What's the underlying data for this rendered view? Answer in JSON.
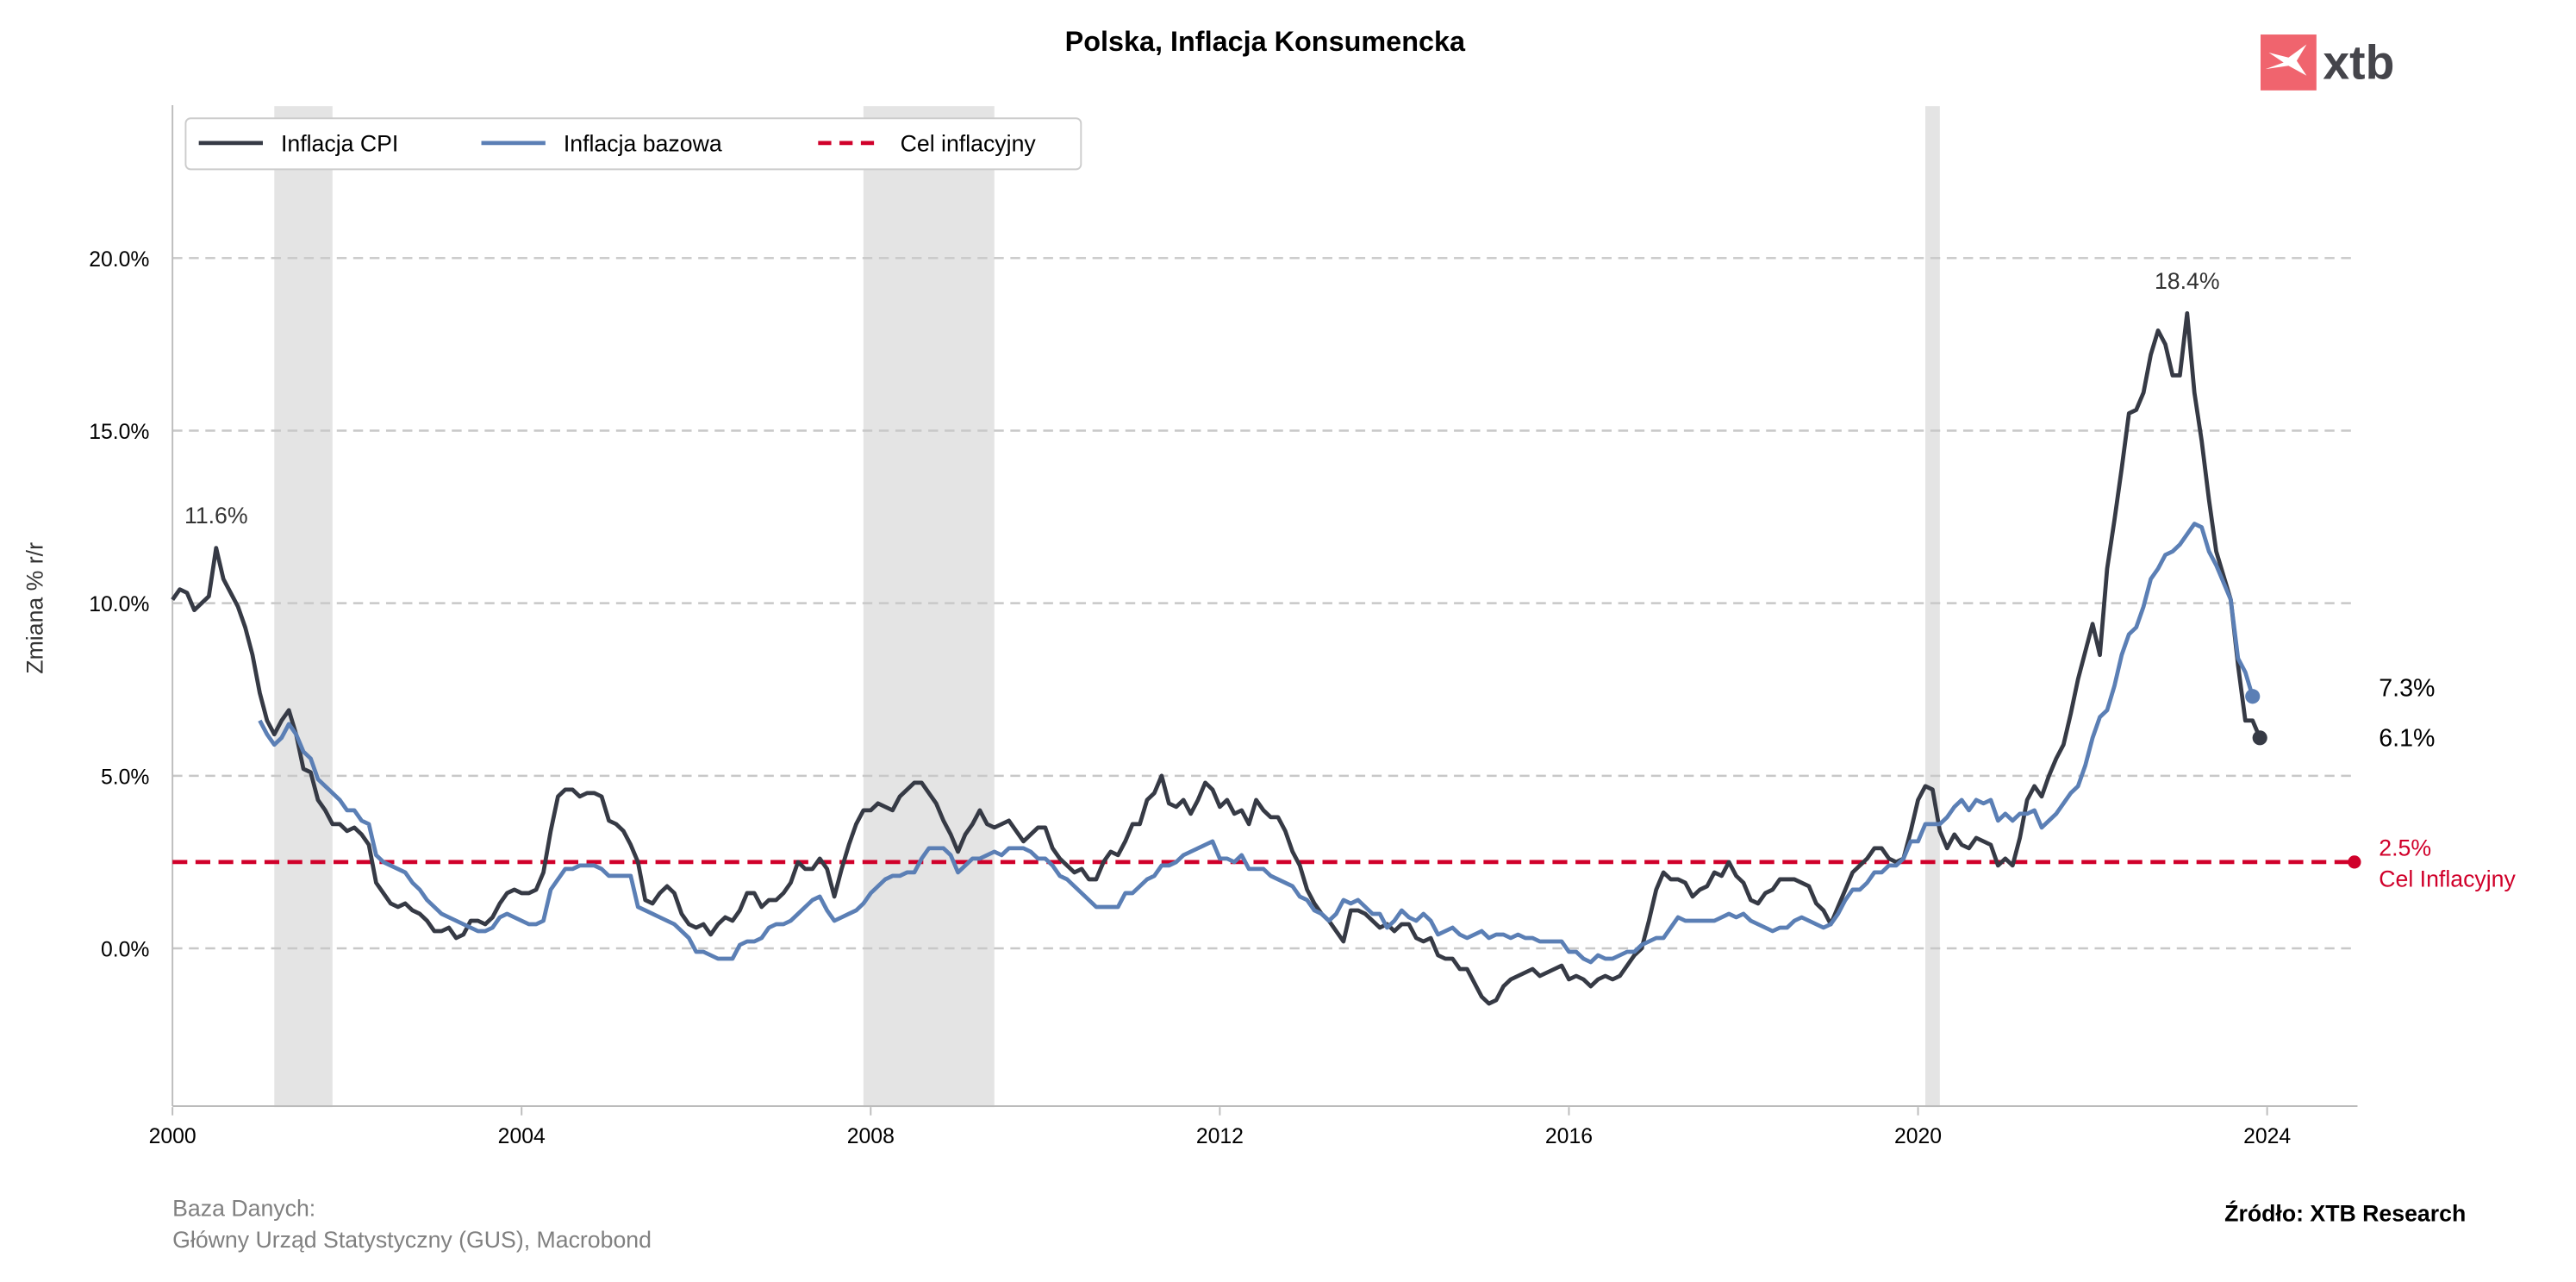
{
  "logo": {
    "text": "xtb",
    "icon": "xtb-x-logo-icon",
    "color": "#f0646e"
  },
  "footer": {
    "db_label": "Baza Danych:",
    "db_sources": "Główny Urząd Statystyczny (GUS), Macrobond",
    "source": "Źródło: XTB Research"
  },
  "chart_data": {
    "type": "line",
    "title": "Polska, Inflacja Konsumencka",
    "xlabel": "",
    "ylabel": "Zmiana % r/r",
    "xlim": [
      "2000-01",
      "2025-01"
    ],
    "ylim": [
      -4.6,
      24.4
    ],
    "x_ticks": [
      "2000",
      "2004",
      "2008",
      "2012",
      "2016",
      "2020",
      "2024"
    ],
    "y_ticks": [
      0,
      5,
      10,
      15,
      20
    ],
    "y_tick_labels": [
      "0.0%",
      "5.0%",
      "10.0%",
      "15.0%",
      "20.0%"
    ],
    "grid": "horizontal dashed",
    "legend_placement": "top-left",
    "shaded_periods": [
      [
        "2001-03",
        "2001-11"
      ],
      [
        "2007-12",
        "2009-06"
      ],
      [
        "2020-02",
        "2020-04"
      ]
    ],
    "target": {
      "name": "Cel inflacyjny",
      "value": 2.5,
      "label_value": "2.5%",
      "label_text": "Cel Inflacyjny",
      "color": "#d0002a"
    },
    "series": [
      {
        "name": "Inflacja CPI",
        "color": "#363a45",
        "start": "2000-01",
        "end_label": "6.1%",
        "values": [
          10.1,
          10.4,
          10.3,
          9.8,
          10.0,
          10.2,
          11.6,
          10.7,
          10.3,
          9.9,
          9.3,
          8.5,
          7.4,
          6.6,
          6.2,
          6.6,
          6.9,
          6.2,
          5.2,
          5.1,
          4.3,
          4.0,
          3.6,
          3.6,
          3.4,
          3.5,
          3.3,
          3.0,
          1.9,
          1.6,
          1.3,
          1.2,
          1.3,
          1.1,
          1.0,
          0.8,
          0.5,
          0.5,
          0.6,
          0.3,
          0.4,
          0.8,
          0.8,
          0.7,
          0.9,
          1.3,
          1.6,
          1.7,
          1.6,
          1.6,
          1.7,
          2.2,
          3.4,
          4.4,
          4.6,
          4.6,
          4.4,
          4.5,
          4.5,
          4.4,
          3.7,
          3.6,
          3.4,
          3.0,
          2.5,
          1.4,
          1.3,
          1.6,
          1.8,
          1.6,
          1.0,
          0.7,
          0.6,
          0.7,
          0.4,
          0.7,
          0.9,
          0.8,
          1.1,
          1.6,
          1.6,
          1.2,
          1.4,
          1.4,
          1.6,
          1.9,
          2.5,
          2.3,
          2.3,
          2.6,
          2.3,
          1.5,
          2.3,
          3.0,
          3.6,
          4.0,
          4.0,
          4.2,
          4.1,
          4.0,
          4.4,
          4.6,
          4.8,
          4.8,
          4.5,
          4.2,
          3.7,
          3.3,
          2.8,
          3.3,
          3.6,
          4.0,
          3.6,
          3.5,
          3.6,
          3.7,
          3.4,
          3.1,
          3.3,
          3.5,
          3.5,
          2.9,
          2.6,
          2.4,
          2.2,
          2.3,
          2.0,
          2.0,
          2.5,
          2.8,
          2.7,
          3.1,
          3.6,
          3.6,
          4.3,
          4.5,
          5.0,
          4.2,
          4.1,
          4.3,
          3.9,
          4.3,
          4.8,
          4.6,
          4.1,
          4.3,
          3.9,
          4.0,
          3.6,
          4.3,
          4.0,
          3.8,
          3.8,
          3.4,
          2.8,
          2.4,
          1.7,
          1.3,
          1.0,
          0.8,
          0.5,
          0.2,
          1.1,
          1.1,
          1.0,
          0.8,
          0.6,
          0.7,
          0.5,
          0.7,
          0.7,
          0.3,
          0.2,
          0.3,
          -0.2,
          -0.3,
          -0.3,
          -0.6,
          -0.6,
          -1.0,
          -1.4,
          -1.6,
          -1.5,
          -1.1,
          -0.9,
          -0.8,
          -0.7,
          -0.6,
          -0.8,
          -0.7,
          -0.6,
          -0.5,
          -0.9,
          -0.8,
          -0.9,
          -1.1,
          -0.9,
          -0.8,
          -0.9,
          -0.8,
          -0.5,
          -0.2,
          0.0,
          0.8,
          1.7,
          2.2,
          2.0,
          2.0,
          1.9,
          1.5,
          1.7,
          1.8,
          2.2,
          2.1,
          2.5,
          2.1,
          1.9,
          1.4,
          1.3,
          1.6,
          1.7,
          2.0,
          2.0,
          2.0,
          1.9,
          1.8,
          1.3,
          1.1,
          0.7,
          1.2,
          1.7,
          2.2,
          2.4,
          2.6,
          2.9,
          2.9,
          2.6,
          2.5,
          2.6,
          3.4,
          4.3,
          4.7,
          4.6,
          3.4,
          2.9,
          3.3,
          3.0,
          2.9,
          3.2,
          3.1,
          3.0,
          2.4,
          2.6,
          2.4,
          3.2,
          4.3,
          4.7,
          4.4,
          5.0,
          5.5,
          5.9,
          6.8,
          7.8,
          8.6,
          9.4,
          8.5,
          11.0,
          12.4,
          13.9,
          15.5,
          15.6,
          16.1,
          17.2,
          17.9,
          17.5,
          16.6,
          16.6,
          18.4,
          16.1,
          14.7,
          13.0,
          11.5,
          10.8,
          10.1,
          8.2,
          6.6,
          6.6,
          6.1
        ]
      },
      {
        "name": "Inflacja bazowa",
        "color": "#5b7fb5",
        "start": "2001-01",
        "end_label": "7.3%",
        "values": [
          6.6,
          6.2,
          5.9,
          6.1,
          6.5,
          6.2,
          5.7,
          5.5,
          4.9,
          4.7,
          4.5,
          4.3,
          4.0,
          4.0,
          3.7,
          3.6,
          2.7,
          2.5,
          2.4,
          2.3,
          2.2,
          1.9,
          1.7,
          1.4,
          1.2,
          1.0,
          0.9,
          0.8,
          0.7,
          0.6,
          0.5,
          0.5,
          0.6,
          0.9,
          1.0,
          0.9,
          0.8,
          0.7,
          0.7,
          0.8,
          1.7,
          2.0,
          2.3,
          2.3,
          2.4,
          2.4,
          2.4,
          2.3,
          2.1,
          2.1,
          2.1,
          2.1,
          1.2,
          1.1,
          1.0,
          0.9,
          0.8,
          0.7,
          0.5,
          0.3,
          -0.1,
          -0.1,
          -0.2,
          -0.3,
          -0.3,
          -0.3,
          0.1,
          0.2,
          0.2,
          0.3,
          0.6,
          0.7,
          0.7,
          0.8,
          1.0,
          1.2,
          1.4,
          1.5,
          1.1,
          0.8,
          0.9,
          1.0,
          1.1,
          1.3,
          1.6,
          1.8,
          2.0,
          2.1,
          2.1,
          2.2,
          2.2,
          2.6,
          2.9,
          2.9,
          2.9,
          2.7,
          2.2,
          2.4,
          2.6,
          2.6,
          2.7,
          2.8,
          2.7,
          2.9,
          2.9,
          2.9,
          2.8,
          2.6,
          2.6,
          2.4,
          2.1,
          2.0,
          1.8,
          1.6,
          1.4,
          1.2,
          1.2,
          1.2,
          1.2,
          1.6,
          1.6,
          1.8,
          2.0,
          2.1,
          2.4,
          2.4,
          2.5,
          2.7,
          2.8,
          2.9,
          3.0,
          3.1,
          2.6,
          2.6,
          2.5,
          2.7,
          2.3,
          2.3,
          2.3,
          2.1,
          2.0,
          1.9,
          1.8,
          1.5,
          1.4,
          1.1,
          1.0,
          0.8,
          1.0,
          1.4,
          1.3,
          1.4,
          1.2,
          1.0,
          1.0,
          0.6,
          0.8,
          1.1,
          0.9,
          0.8,
          1.0,
          0.8,
          0.4,
          0.5,
          0.6,
          0.4,
          0.3,
          0.4,
          0.5,
          0.3,
          0.4,
          0.4,
          0.3,
          0.4,
          0.3,
          0.3,
          0.2,
          0.2,
          0.2,
          0.2,
          -0.1,
          -0.1,
          -0.3,
          -0.4,
          -0.2,
          -0.3,
          -0.3,
          -0.2,
          -0.1,
          -0.1,
          0.1,
          0.2,
          0.3,
          0.3,
          0.6,
          0.9,
          0.8,
          0.8,
          0.8,
          0.8,
          0.8,
          0.9,
          1.0,
          0.9,
          1.0,
          0.8,
          0.7,
          0.6,
          0.5,
          0.6,
          0.6,
          0.8,
          0.9,
          0.8,
          0.7,
          0.6,
          0.7,
          1.0,
          1.4,
          1.7,
          1.7,
          1.9,
          2.2,
          2.2,
          2.4,
          2.4,
          2.6,
          3.1,
          3.1,
          3.6,
          3.6,
          3.6,
          3.8,
          4.1,
          4.3,
          4.0,
          4.3,
          4.2,
          4.3,
          3.7,
          3.9,
          3.7,
          3.9,
          3.9,
          4.0,
          3.5,
          3.7,
          3.9,
          4.2,
          4.5,
          4.7,
          5.3,
          6.1,
          6.7,
          6.9,
          7.6,
          8.5,
          9.1,
          9.3,
          9.9,
          10.7,
          11.0,
          11.4,
          11.5,
          11.7,
          12.0,
          12.3,
          12.2,
          11.5,
          11.1,
          10.6,
          10.1,
          8.4,
          8.0,
          7.3
        ]
      }
    ],
    "annotations": [
      {
        "date": "2000-07",
        "value": 11.6,
        "text": "11.6%"
      },
      {
        "date": "2023-02",
        "value": 18.4,
        "text": "18.4%"
      }
    ]
  }
}
